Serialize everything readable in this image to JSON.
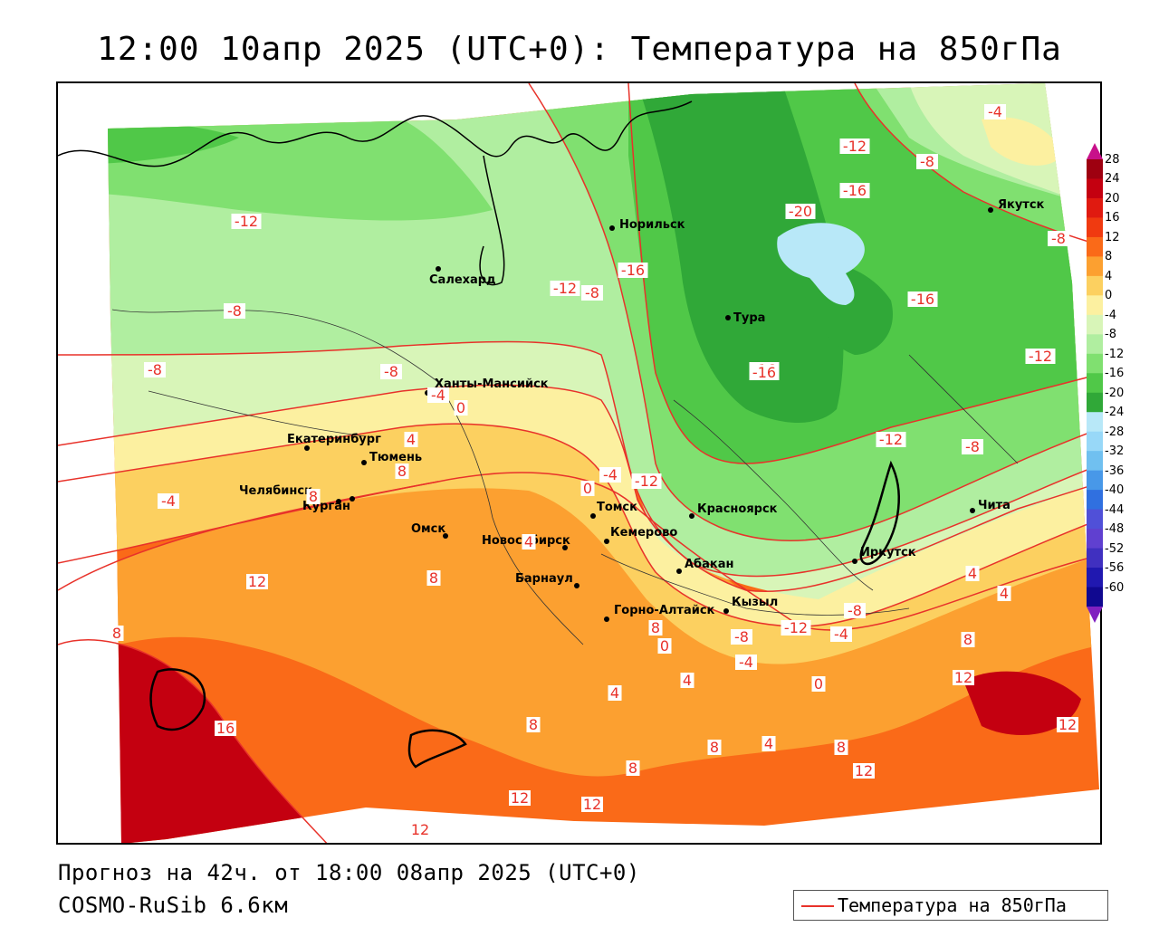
{
  "title": "12:00 10апр 2025 (UTC+0): Температура на 850гПа",
  "footer": {
    "forecast": "Прогноз на 42ч. от 18:00 08апр 2025 (UTC+0)",
    "model": "COSMO-RuSib 6.6км"
  },
  "legend": {
    "label": "Температура на 850гПа",
    "color": "#e8322a"
  },
  "colorbar": {
    "ticks": [
      "28",
      "24",
      "20",
      "16",
      "12",
      "8",
      "4",
      "0",
      "-4",
      "-8",
      "-12",
      "-16",
      "-20",
      "-24",
      "-28",
      "-32",
      "-36",
      "-40",
      "-44",
      "-48",
      "-52",
      "-56",
      "-60"
    ],
    "colors": [
      "#9e0010",
      "#c40010",
      "#e01a10",
      "#f03a10",
      "#fa6a18",
      "#fca030",
      "#fcd060",
      "#fcf0a0",
      "#d8f5b8",
      "#b0eea0",
      "#80e070",
      "#50c848",
      "#30a838",
      "#b8e8f8",
      "#98d8f8",
      "#70c0f0",
      "#4898e8",
      "#3070e0",
      "#5050d8",
      "#6040d0",
      "#4030c0",
      "#2018b0",
      "#100890"
    ]
  },
  "cities": [
    {
      "name": "Норильск"
    },
    {
      "name": "Салехард"
    },
    {
      "name": "Тура"
    },
    {
      "name": "Якутск"
    },
    {
      "name": "Ханты-Мансийск"
    },
    {
      "name": "Екатеринбург"
    },
    {
      "name": "Тюмень"
    },
    {
      "name": "Челябинск"
    },
    {
      "name": "Курган"
    },
    {
      "name": "Омск"
    },
    {
      "name": "Новосибирск"
    },
    {
      "name": "Томск"
    },
    {
      "name": "Кемерово"
    },
    {
      "name": "Барнаул"
    },
    {
      "name": "Красноярск"
    },
    {
      "name": "Абакан"
    },
    {
      "name": "Кызыл"
    },
    {
      "name": "Горно-Алтайск"
    },
    {
      "name": "Иркутск"
    },
    {
      "name": "Чита"
    }
  ],
  "isoline_labels": [
    "-4",
    "-12",
    "-8",
    "-16",
    "-20",
    "-16",
    "-12",
    "-8",
    "-12",
    "-8",
    "-16",
    "-8",
    "-8",
    "-12",
    "-16",
    "-8",
    "-4",
    "0",
    "4",
    "8",
    "8",
    "-4",
    "0",
    "-12",
    "-12",
    "-8",
    "-4",
    "4",
    "8",
    "12",
    "8",
    "8",
    "0",
    "4",
    "4",
    "-8",
    "-12",
    "-4",
    "-8",
    "-4",
    "0",
    "4",
    "4",
    "8",
    "12",
    "12",
    "16",
    "8",
    "8",
    "4",
    "8",
    "12",
    "12",
    "8",
    "12",
    "12",
    "-16"
  ]
}
